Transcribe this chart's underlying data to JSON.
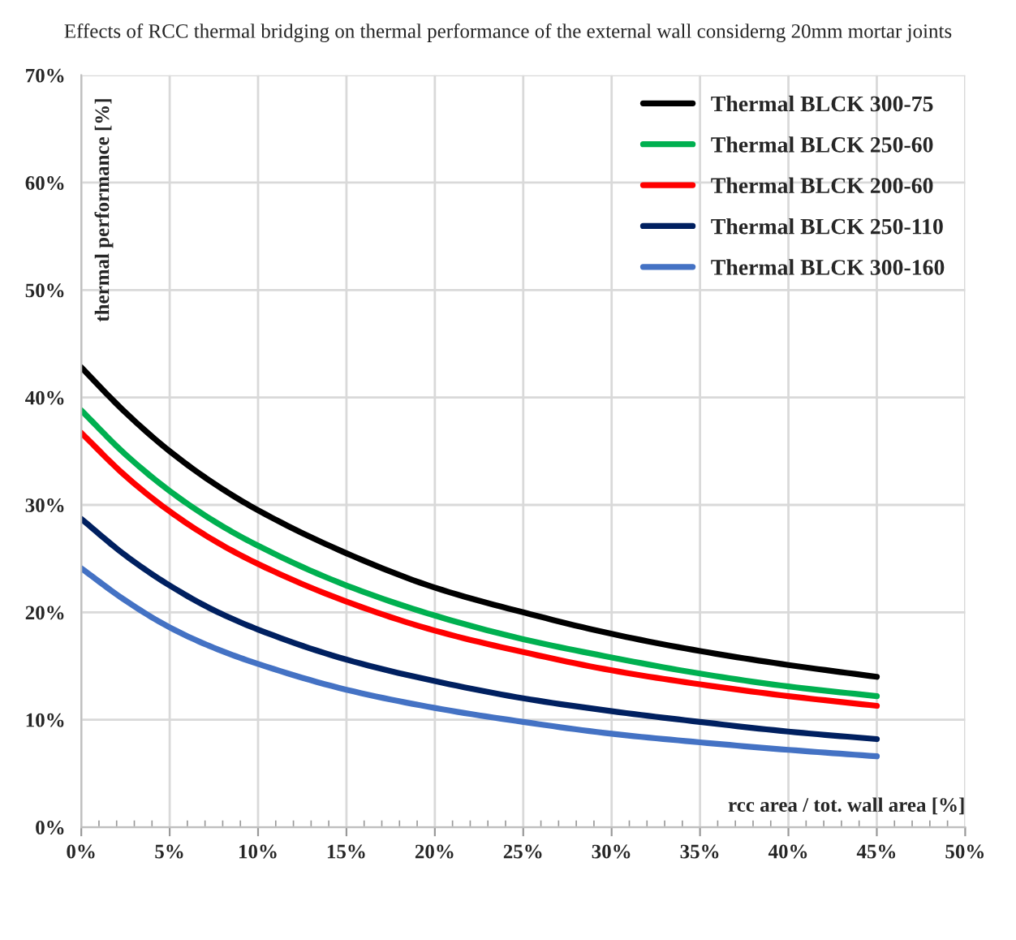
{
  "chart_data": {
    "type": "line",
    "title": "Effects of RCC thermal bridging on thermal performance of the external wall considerng 20mm mortar joints",
    "xlabel": "rcc area / tot. wall area [%]",
    "ylabel": "thermal performance [%]",
    "x": [
      0,
      2.5,
      5,
      7.5,
      10,
      15,
      20,
      25,
      30,
      35,
      40,
      45
    ],
    "series": [
      {
        "name": "Thermal BLCK 300-75",
        "color": "#000000",
        "values": [
          42.8,
          38.6,
          35,
          32.0,
          29.5,
          25.5,
          22.3,
          20,
          18,
          16.4,
          15.1,
          14.0
        ]
      },
      {
        "name": "Thermal BLCK 250-60",
        "color": "#00b050",
        "values": [
          38.8,
          34.7,
          31.3,
          28.5,
          26.2,
          22.5,
          19.7,
          17.5,
          15.8,
          14.3,
          13.1,
          12.2
        ]
      },
      {
        "name": "Thermal BLCK 200-60",
        "color": "#ff0000",
        "values": [
          36.7,
          32.7,
          29.4,
          26.7,
          24.5,
          21,
          18.3,
          16.3,
          14.6,
          13.3,
          12.2,
          11.3
        ]
      },
      {
        "name": "Thermal BLCK 250-110",
        "color": "#002060",
        "values": [
          28.7,
          25.3,
          22.5,
          20.2,
          18.4,
          15.6,
          13.6,
          12.0,
          10.8,
          9.8,
          8.9,
          8.2
        ]
      },
      {
        "name": "Thermal BLCK 300-160",
        "color": "#4472c4",
        "values": [
          24.1,
          21.1,
          18.6,
          16.7,
          15.2,
          12.8,
          11.1,
          9.8,
          8.7,
          7.9,
          7.2,
          6.6
        ]
      }
    ],
    "xlim": [
      0,
      50
    ],
    "ylim": [
      0,
      70
    ],
    "xticks": [
      {
        "value": 0,
        "label": "0%"
      },
      {
        "value": 5,
        "label": "5%"
      },
      {
        "value": 10,
        "label": "10%"
      },
      {
        "value": 15,
        "label": "15%"
      },
      {
        "value": 20,
        "label": "20%"
      },
      {
        "value": 25,
        "label": "25%"
      },
      {
        "value": 30,
        "label": "30%"
      },
      {
        "value": 35,
        "label": "35%"
      },
      {
        "value": 40,
        "label": "40%"
      },
      {
        "value": 45,
        "label": "45%"
      },
      {
        "value": 50,
        "label": "50%"
      }
    ],
    "yticks": [
      {
        "value": 0,
        "label": "0%"
      },
      {
        "value": 10,
        "label": "10%"
      },
      {
        "value": 20,
        "label": "20%"
      },
      {
        "value": 30,
        "label": "30%"
      },
      {
        "value": 40,
        "label": "40%"
      },
      {
        "value": 50,
        "label": "50%"
      },
      {
        "value": 60,
        "label": "60%"
      },
      {
        "value": 70,
        "label": "70%"
      }
    ],
    "grid": true,
    "legend": "top right",
    "marker": "none",
    "line_style": "solid"
  }
}
